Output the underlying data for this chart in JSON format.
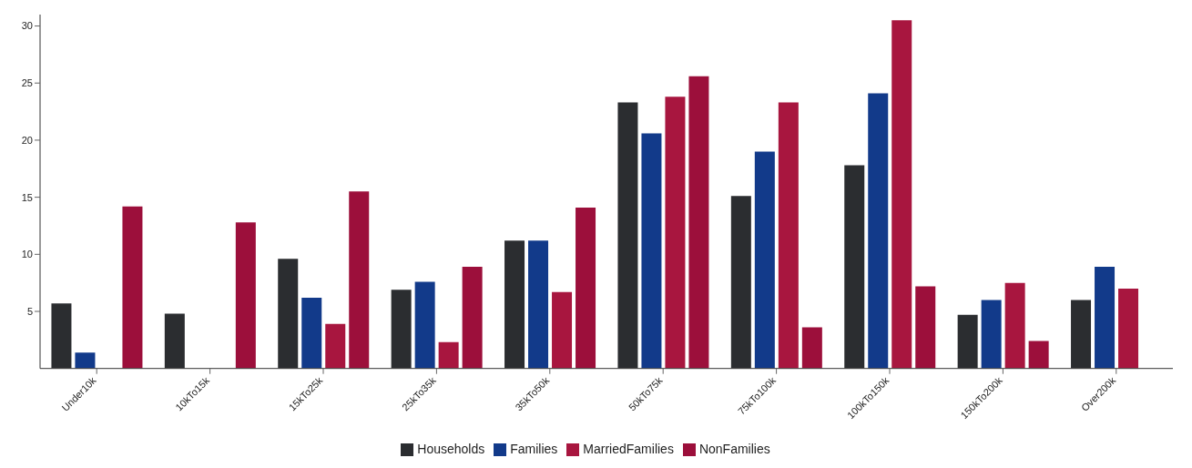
{
  "chart_data": {
    "type": "bar",
    "categories": [
      "Under10k",
      "10kTo15k",
      "15kTo25k",
      "25kTo35k",
      "35kTo50k",
      "50kTo75k",
      "75kTo100k",
      "100kTo150k",
      "150kTo200k",
      "Over200k"
    ],
    "series": [
      {
        "name": "Households",
        "color": "#2b2d30",
        "values": [
          5.7,
          4.8,
          9.6,
          6.9,
          11.2,
          23.3,
          15.1,
          17.8,
          4.7,
          6.0
        ]
      },
      {
        "name": "Families",
        "color": "#123a8a",
        "values": [
          1.4,
          null,
          6.2,
          7.6,
          11.2,
          20.6,
          19.0,
          24.1,
          6.0,
          8.9
        ]
      },
      {
        "name": "MarriedFamilies",
        "color": "#a8163f",
        "values": [
          null,
          null,
          3.9,
          2.3,
          6.7,
          23.8,
          23.3,
          30.5,
          7.5,
          7.0
        ]
      },
      {
        "name": "NonFamilies",
        "color": "#9c0f3b",
        "values": [
          14.2,
          12.8,
          15.5,
          8.9,
          14.1,
          25.6,
          3.6,
          7.2,
          2.4,
          null
        ]
      }
    ],
    "ylim": [
      0,
      31
    ],
    "yticks": [
      5,
      10,
      15,
      20,
      25,
      30
    ],
    "grid": false,
    "legend": "bottom"
  }
}
